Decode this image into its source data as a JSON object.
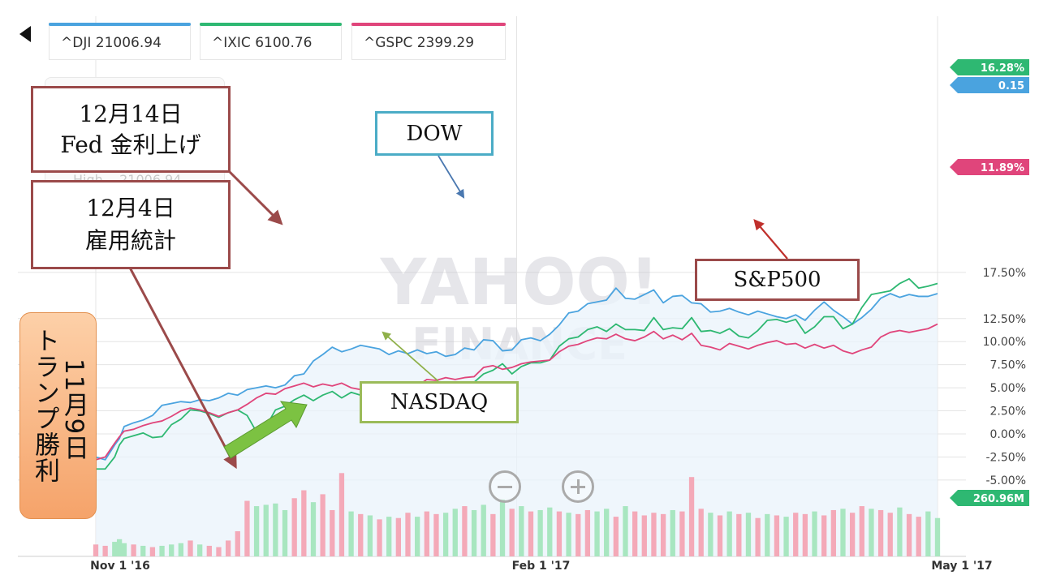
{
  "tickers": [
    {
      "label": "^DJI 21006.94",
      "color": "#4aa3df"
    },
    {
      "label": "^IXIC 6100.76",
      "color": "#2eb872"
    },
    {
      "label": "^GSPC 2399.29",
      "color": "#e0457b"
    }
  ],
  "ghost_text": "High    21006.94",
  "callouts": {
    "fed": [
      "12月14日",
      "Fed 金利上げ"
    ],
    "jobs": [
      "12月4日",
      "雇用統計"
    ],
    "dow": "DOW",
    "nasdaq": "NASDAQ",
    "sp500": "S&P500"
  },
  "trump": {
    "col_right": "11月9日",
    "col_left": "トランプ勝利"
  },
  "watermark": [
    "YAHOO!",
    "FINANCE"
  ],
  "colors": {
    "dow": "#4aa3df",
    "nasdaq": "#2eb872",
    "sp500": "#e0457b",
    "vol_up": "#a8e6c0",
    "vol_down": "#f4a9b8",
    "arrow_green": "#7cc242",
    "callout_brown": "#9b4a4a"
  },
  "chart_data": {
    "type": "line",
    "y_ticks": [
      "17.50%",
      "12.50%",
      "10.00%",
      "7.50%",
      "5.00%",
      "2.50%",
      "0.00%",
      "-2.50%",
      "-5.00%"
    ],
    "x_ticks": [
      "Nov 1 '16",
      "Feb 1 '17",
      "May 1 '17"
    ],
    "ylim": [
      -5.0,
      17.5
    ],
    "flags": [
      {
        "label": "16.28%",
        "series": "NASDAQ",
        "color": "#2eb872"
      },
      {
        "label": "0.15",
        "series": "DOW",
        "color": "#4aa3df"
      },
      {
        "label": "11.89%",
        "series": "S&P500",
        "color": "#e0457b"
      },
      {
        "label": "260.96M",
        "series": "Volume",
        "color": "#2eb872"
      }
    ],
    "series": [
      {
        "name": "DOW",
        "x": [
          0,
          2,
          4,
          5,
          6,
          8,
          10,
          12,
          14,
          16,
          18,
          20,
          22,
          24,
          26,
          28,
          30,
          32,
          34,
          36,
          38,
          40,
          42,
          44,
          46,
          48,
          50,
          52,
          54,
          56,
          58,
          60,
          62,
          64,
          66,
          68,
          70,
          72,
          74,
          76,
          78,
          80,
          82,
          84,
          86,
          88,
          90,
          92,
          94,
          96,
          98,
          100,
          102,
          104,
          106,
          108,
          110,
          112,
          114,
          116,
          118,
          120,
          122,
          124,
          126,
          128,
          130,
          132,
          134,
          136,
          138,
          140,
          142,
          144,
          146,
          148,
          150,
          152,
          154,
          156,
          158,
          160,
          162,
          164,
          166,
          168,
          170,
          172,
          174,
          176,
          178
        ],
        "values": [
          -2.5,
          -2.8,
          -1.2,
          -0.5,
          0.8,
          1.2,
          1.5,
          2.0,
          3.1,
          3.3,
          3.5,
          3.4,
          3.7,
          3.6,
          3.9,
          4.4,
          4.2,
          4.8,
          5.0,
          5.2,
          5.0,
          5.3,
          6.3,
          6.5,
          7.9,
          8.6,
          9.4,
          8.9,
          9.2,
          9.6,
          9.4,
          9.2,
          8.6,
          9.0,
          8.7,
          9.1,
          8.7,
          8.9,
          8.4,
          8.6,
          9.3,
          9.1,
          10.2,
          10.1,
          9.0,
          9.1,
          10.2,
          10.4,
          10.1,
          10.8,
          11.8,
          13.1,
          13.3,
          14.1,
          14.3,
          14.5,
          15.8,
          14.7,
          14.6,
          15.1,
          15.6,
          14.2,
          14.9,
          15.0,
          14.2,
          14.1,
          13.2,
          13.3,
          13.6,
          13.2,
          12.9,
          13.3,
          13.0,
          12.7,
          12.5,
          12.9,
          12.3,
          13.4,
          14.3,
          13.4,
          12.7,
          11.9,
          12.6,
          13.5,
          14.7,
          15.2,
          14.8,
          15.1,
          14.9,
          14.9,
          15.2
        ]
      },
      {
        "name": "NASDAQ",
        "x": [
          0,
          2,
          4,
          5,
          6,
          8,
          10,
          12,
          14,
          16,
          18,
          20,
          22,
          24,
          26,
          28,
          30,
          32,
          34,
          36,
          38,
          40,
          42,
          44,
          46,
          48,
          50,
          52,
          54,
          56,
          58,
          60,
          62,
          64,
          66,
          68,
          70,
          72,
          74,
          76,
          78,
          80,
          82,
          84,
          86,
          88,
          90,
          92,
          94,
          96,
          98,
          100,
          102,
          104,
          106,
          108,
          110,
          112,
          114,
          116,
          118,
          120,
          122,
          124,
          126,
          128,
          130,
          132,
          134,
          136,
          138,
          140,
          142,
          144,
          146,
          148,
          150,
          152,
          154,
          156,
          158,
          160,
          162,
          164,
          166,
          168,
          170,
          172,
          174,
          176,
          178
        ],
        "values": [
          -3.8,
          -3.8,
          -2.5,
          -1.2,
          -0.5,
          -0.2,
          0.1,
          -0.4,
          -0.3,
          1.0,
          1.6,
          2.6,
          2.5,
          2.2,
          1.8,
          2.3,
          2.6,
          2.0,
          0.2,
          0.8,
          2.6,
          3.0,
          3.7,
          4.2,
          3.6,
          4.2,
          4.6,
          3.9,
          4.5,
          4.2,
          3.8,
          4.5,
          4.2,
          3.9,
          2.5,
          3.8,
          4.3,
          5.0,
          5.3,
          5.3,
          5.5,
          5.6,
          6.5,
          6.9,
          7.6,
          6.5,
          7.3,
          7.7,
          7.7,
          8.0,
          9.5,
          10.3,
          10.5,
          11.3,
          11.6,
          11.1,
          11.9,
          11.3,
          11.3,
          11.2,
          12.6,
          11.3,
          11.5,
          11.4,
          12.6,
          11.1,
          11.2,
          10.9,
          11.4,
          10.6,
          10.4,
          11.2,
          12.3,
          12.4,
          12.1,
          12.4,
          10.9,
          11.6,
          12.7,
          12.7,
          11.4,
          11.9,
          13.7,
          15.1,
          15.3,
          15.5,
          16.3,
          16.8,
          15.8,
          16.0,
          16.3
        ]
      },
      {
        "name": "S&P500",
        "x": [
          0,
          2,
          4,
          5,
          6,
          8,
          10,
          12,
          14,
          16,
          18,
          20,
          22,
          24,
          26,
          28,
          30,
          32,
          34,
          36,
          38,
          40,
          42,
          44,
          46,
          48,
          50,
          52,
          54,
          56,
          58,
          60,
          62,
          64,
          66,
          68,
          70,
          72,
          74,
          76,
          78,
          80,
          82,
          84,
          86,
          88,
          90,
          92,
          94,
          96,
          98,
          100,
          102,
          104,
          106,
          108,
          110,
          112,
          114,
          116,
          118,
          120,
          122,
          124,
          126,
          128,
          130,
          132,
          134,
          136,
          138,
          140,
          142,
          144,
          146,
          148,
          150,
          152,
          154,
          156,
          158,
          160,
          162,
          164,
          166,
          168,
          170,
          172,
          174,
          176,
          178
        ],
        "values": [
          -2.8,
          -2.5,
          -1.0,
          -0.3,
          0.3,
          0.5,
          0.9,
          1.2,
          1.4,
          1.9,
          2.5,
          2.8,
          2.6,
          2.3,
          1.9,
          2.3,
          2.6,
          3.2,
          3.9,
          4.4,
          4.3,
          4.9,
          5.2,
          5.5,
          5.1,
          5.4,
          5.2,
          5.5,
          5.0,
          4.8,
          5.3,
          5.5,
          5.2,
          4.6,
          4.4,
          5.2,
          5.9,
          5.8,
          6.1,
          5.9,
          6.1,
          6.2,
          7.2,
          7.4,
          7.0,
          7.2,
          7.6,
          7.8,
          7.9,
          8.0,
          8.9,
          9.5,
          9.7,
          10.1,
          10.4,
          10.3,
          10.8,
          10.3,
          10.1,
          10.5,
          11.1,
          10.3,
          10.7,
          10.2,
          10.9,
          9.6,
          9.4,
          9.1,
          9.8,
          9.5,
          9.2,
          9.6,
          9.9,
          10.1,
          9.7,
          9.8,
          9.3,
          9.7,
          9.3,
          9.6,
          9.0,
          8.7,
          9.1,
          9.4,
          10.5,
          11.0,
          11.2,
          11.0,
          11.2,
          11.4,
          11.9
        ]
      }
    ],
    "volume": [
      {
        "x": 0,
        "v": 0.9,
        "up": false
      },
      {
        "x": 2,
        "v": 0.8,
        "up": false
      },
      {
        "x": 4,
        "v": 1.1,
        "up": true
      },
      {
        "x": 5,
        "v": 1.3,
        "up": true
      },
      {
        "x": 6,
        "v": 1.0,
        "up": true
      },
      {
        "x": 8,
        "v": 0.9,
        "up": false
      },
      {
        "x": 10,
        "v": 0.8,
        "up": true
      },
      {
        "x": 12,
        "v": 0.7,
        "up": false
      },
      {
        "x": 14,
        "v": 0.8,
        "up": true
      },
      {
        "x": 16,
        "v": 0.9,
        "up": true
      },
      {
        "x": 18,
        "v": 1.0,
        "up": true
      },
      {
        "x": 20,
        "v": 1.2,
        "up": false
      },
      {
        "x": 22,
        "v": 0.9,
        "up": true
      },
      {
        "x": 24,
        "v": 0.8,
        "up": false
      },
      {
        "x": 26,
        "v": 0.7,
        "up": false
      },
      {
        "x": 28,
        "v": 1.2,
        "up": false
      },
      {
        "x": 30,
        "v": 1.9,
        "up": false
      },
      {
        "x": 32,
        "v": 4.2,
        "up": false
      },
      {
        "x": 34,
        "v": 3.8,
        "up": true
      },
      {
        "x": 36,
        "v": 3.9,
        "up": true
      },
      {
        "x": 38,
        "v": 4.0,
        "up": true
      },
      {
        "x": 40,
        "v": 3.5,
        "up": true
      },
      {
        "x": 42,
        "v": 4.4,
        "up": false
      },
      {
        "x": 44,
        "v": 5.0,
        "up": false
      },
      {
        "x": 46,
        "v": 4.1,
        "up": true
      },
      {
        "x": 48,
        "v": 4.7,
        "up": false
      },
      {
        "x": 50,
        "v": 3.5,
        "up": false
      },
      {
        "x": 52,
        "v": 6.3,
        "up": false
      },
      {
        "x": 54,
        "v": 3.4,
        "up": true
      },
      {
        "x": 56,
        "v": 3.2,
        "up": false
      },
      {
        "x": 58,
        "v": 3.1,
        "up": true
      },
      {
        "x": 60,
        "v": 2.8,
        "up": false
      },
      {
        "x": 62,
        "v": 3.0,
        "up": true
      },
      {
        "x": 64,
        "v": 2.9,
        "up": false
      },
      {
        "x": 66,
        "v": 3.3,
        "up": false
      },
      {
        "x": 68,
        "v": 3.0,
        "up": true
      },
      {
        "x": 70,
        "v": 3.4,
        "up": false
      },
      {
        "x": 72,
        "v": 3.2,
        "up": false
      },
      {
        "x": 74,
        "v": 3.3,
        "up": true
      },
      {
        "x": 76,
        "v": 3.6,
        "up": true
      },
      {
        "x": 78,
        "v": 3.8,
        "up": false
      },
      {
        "x": 80,
        "v": 3.5,
        "up": true
      },
      {
        "x": 82,
        "v": 3.9,
        "up": true
      },
      {
        "x": 84,
        "v": 3.2,
        "up": false
      },
      {
        "x": 86,
        "v": 4.3,
        "up": true
      },
      {
        "x": 88,
        "v": 3.6,
        "up": false
      },
      {
        "x": 90,
        "v": 3.8,
        "up": true
      },
      {
        "x": 92,
        "v": 3.4,
        "up": false
      },
      {
        "x": 94,
        "v": 3.5,
        "up": true
      },
      {
        "x": 96,
        "v": 3.7,
        "up": true
      },
      {
        "x": 98,
        "v": 3.4,
        "up": false
      },
      {
        "x": 100,
        "v": 3.3,
        "up": true
      },
      {
        "x": 102,
        "v": 3.2,
        "up": false
      },
      {
        "x": 104,
        "v": 3.5,
        "up": false
      },
      {
        "x": 106,
        "v": 3.4,
        "up": true
      },
      {
        "x": 108,
        "v": 3.6,
        "up": true
      },
      {
        "x": 110,
        "v": 3.0,
        "up": false
      },
      {
        "x": 112,
        "v": 3.8,
        "up": true
      },
      {
        "x": 114,
        "v": 3.4,
        "up": false
      },
      {
        "x": 116,
        "v": 3.1,
        "up": false
      },
      {
        "x": 118,
        "v": 3.3,
        "up": false
      },
      {
        "x": 120,
        "v": 3.2,
        "up": false
      },
      {
        "x": 122,
        "v": 3.5,
        "up": true
      },
      {
        "x": 124,
        "v": 3.4,
        "up": false
      },
      {
        "x": 126,
        "v": 6.0,
        "up": false
      },
      {
        "x": 128,
        "v": 3.6,
        "up": false
      },
      {
        "x": 130,
        "v": 3.3,
        "up": true
      },
      {
        "x": 132,
        "v": 3.1,
        "up": false
      },
      {
        "x": 134,
        "v": 3.4,
        "up": true
      },
      {
        "x": 136,
        "v": 3.2,
        "up": false
      },
      {
        "x": 138,
        "v": 3.3,
        "up": true
      },
      {
        "x": 140,
        "v": 2.9,
        "up": false
      },
      {
        "x": 142,
        "v": 3.2,
        "up": true
      },
      {
        "x": 144,
        "v": 3.1,
        "up": false
      },
      {
        "x": 146,
        "v": 3.0,
        "up": true
      },
      {
        "x": 148,
        "v": 3.3,
        "up": false
      },
      {
        "x": 150,
        "v": 3.2,
        "up": false
      },
      {
        "x": 152,
        "v": 3.4,
        "up": true
      },
      {
        "x": 154,
        "v": 3.1,
        "up": false
      },
      {
        "x": 156,
        "v": 3.5,
        "up": false
      },
      {
        "x": 158,
        "v": 3.6,
        "up": true
      },
      {
        "x": 160,
        "v": 3.3,
        "up": false
      },
      {
        "x": 162,
        "v": 3.8,
        "up": false
      },
      {
        "x": 164,
        "v": 3.6,
        "up": true
      },
      {
        "x": 166,
        "v": 3.5,
        "up": false
      },
      {
        "x": 168,
        "v": 3.3,
        "up": false
      },
      {
        "x": 170,
        "v": 3.7,
        "up": true
      },
      {
        "x": 172,
        "v": 3.2,
        "up": false
      },
      {
        "x": 174,
        "v": 3.0,
        "up": false
      },
      {
        "x": 176,
        "v": 3.4,
        "up": true
      },
      {
        "x": 178,
        "v": 2.9,
        "up": true
      }
    ]
  }
}
